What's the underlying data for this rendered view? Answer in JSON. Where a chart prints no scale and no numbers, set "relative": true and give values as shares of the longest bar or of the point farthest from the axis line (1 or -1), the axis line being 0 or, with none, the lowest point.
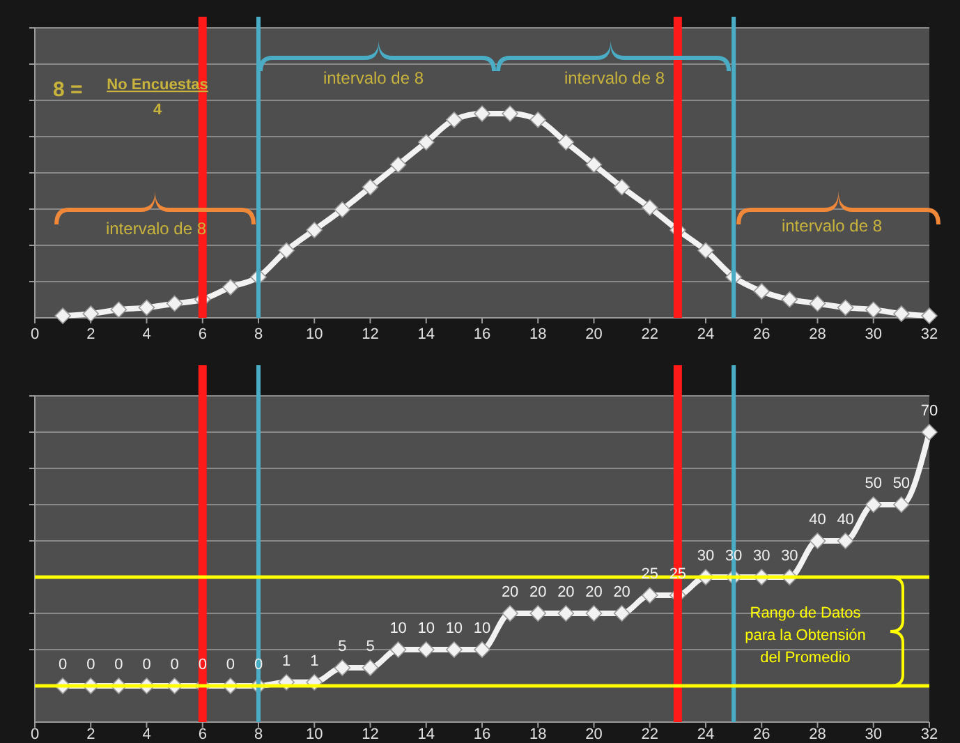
{
  "chart_data": [
    {
      "type": "line",
      "relative": true,
      "x": [
        1,
        2,
        3,
        4,
        5,
        6,
        7,
        8,
        9,
        10,
        11,
        12,
        13,
        14,
        15,
        16,
        17,
        18,
        19,
        20,
        21,
        22,
        23,
        24,
        25,
        26,
        27,
        28,
        29,
        30,
        31,
        32
      ],
      "series": [
        {
          "color": "#f2f2f2",
          "values": [
            0.01,
            0.02,
            0.04,
            0.05,
            0.07,
            0.09,
            0.15,
            0.2,
            0.33,
            0.43,
            0.53,
            0.64,
            0.75,
            0.86,
            0.97,
            1,
            1,
            0.97,
            0.86,
            0.75,
            0.64,
            0.54,
            0.43,
            0.33,
            0.2,
            0.13,
            0.09,
            0.07,
            0.05,
            0.04,
            0.02,
            0.01
          ]
        }
      ],
      "xlim": [
        0,
        32
      ],
      "xticks": [
        0,
        2,
        4,
        6,
        8,
        10,
        12,
        14,
        16,
        18,
        20,
        22,
        24,
        26,
        28,
        30,
        32
      ],
      "grid": "y",
      "marker": "diamond",
      "line_style": "solid",
      "tick_labels": "x",
      "ref_lines": [
        {
          "axis": "x",
          "value": 6,
          "color": "#ff1a1a"
        },
        {
          "axis": "x",
          "value": 23,
          "color": "#ff1a1a"
        },
        {
          "axis": "x",
          "value": 8,
          "color": "#4bacc6"
        },
        {
          "axis": "x",
          "value": 25,
          "color": "#4bacc6"
        }
      ],
      "annotations": [
        "8 =",
        "No Encuestas",
        "4",
        "intervalo de 8",
        "intervalo de 8",
        "intervalo de 8",
        "intervalo de 8"
      ]
    },
    {
      "type": "line",
      "x": [
        1,
        2,
        3,
        4,
        5,
        6,
        7,
        8,
        9,
        10,
        11,
        12,
        13,
        14,
        15,
        16,
        17,
        18,
        19,
        20,
        21,
        22,
        23,
        24,
        25,
        26,
        27,
        28,
        29,
        30,
        31,
        32
      ],
      "series": [
        {
          "color": "#f2f2f2",
          "values": [
            0,
            0,
            0,
            0,
            0,
            0,
            0,
            0,
            1,
            1,
            5,
            5,
            10,
            10,
            10,
            10,
            20,
            20,
            20,
            20,
            20,
            25,
            25,
            30,
            30,
            30,
            30,
            40,
            40,
            50,
            50,
            70
          ]
        }
      ],
      "data_labels": true,
      "xlim": [
        0,
        32
      ],
      "xticks": [
        0,
        2,
        4,
        6,
        8,
        10,
        12,
        14,
        16,
        18,
        20,
        22,
        24,
        26,
        28,
        30,
        32
      ],
      "ylim": [
        -10,
        80
      ],
      "yticks": [
        {
          "value": 10,
          "label": null
        },
        {
          "value": 20,
          "label": null
        },
        {
          "value": 40,
          "label": null
        },
        {
          "value": 50,
          "label": null
        },
        {
          "value": 60,
          "label": null
        },
        {
          "value": 70,
          "label": null
        },
        {
          "value": 80,
          "label": null
        }
      ],
      "grid": "y",
      "marker": "diamond",
      "line_style": "solid",
      "tick_labels": "x",
      "ref_lines": [
        {
          "axis": "x",
          "value": 6,
          "color": "#ff1a1a"
        },
        {
          "axis": "x",
          "value": 23,
          "color": "#ff1a1a"
        },
        {
          "axis": "x",
          "value": 8,
          "color": "#4bacc6"
        },
        {
          "axis": "x",
          "value": 25,
          "color": "#4bacc6"
        },
        {
          "axis": "y",
          "value": 0,
          "color": "#ffff00"
        },
        {
          "axis": "y",
          "value": 30,
          "color": "#ffff00"
        }
      ],
      "annotations": [
        "Rango de Datos para la Obtensión del Promedio"
      ]
    }
  ]
}
